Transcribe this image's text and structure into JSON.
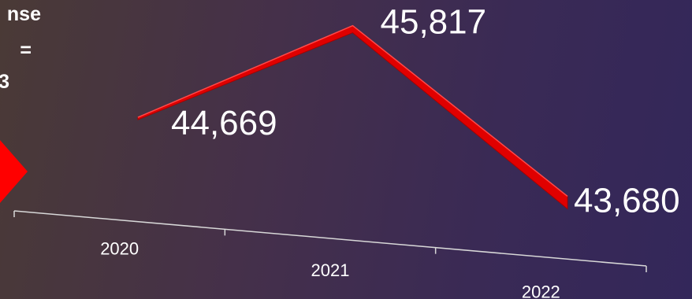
{
  "side_text": [
    "nse",
    "=",
    "3"
  ],
  "chart_data": {
    "type": "line",
    "categories": [
      "2020",
      "2021",
      "2022"
    ],
    "series": [
      {
        "values": [
          44669,
          45817,
          43680
        ]
      }
    ],
    "data_labels": [
      "44,669",
      "45,817",
      "43,680"
    ],
    "ylim": [
      43300,
      46000
    ],
    "grid": false,
    "line_color": "#e00000",
    "line_shade_color": "#a80000",
    "axis_color": "#d8d8d8"
  }
}
